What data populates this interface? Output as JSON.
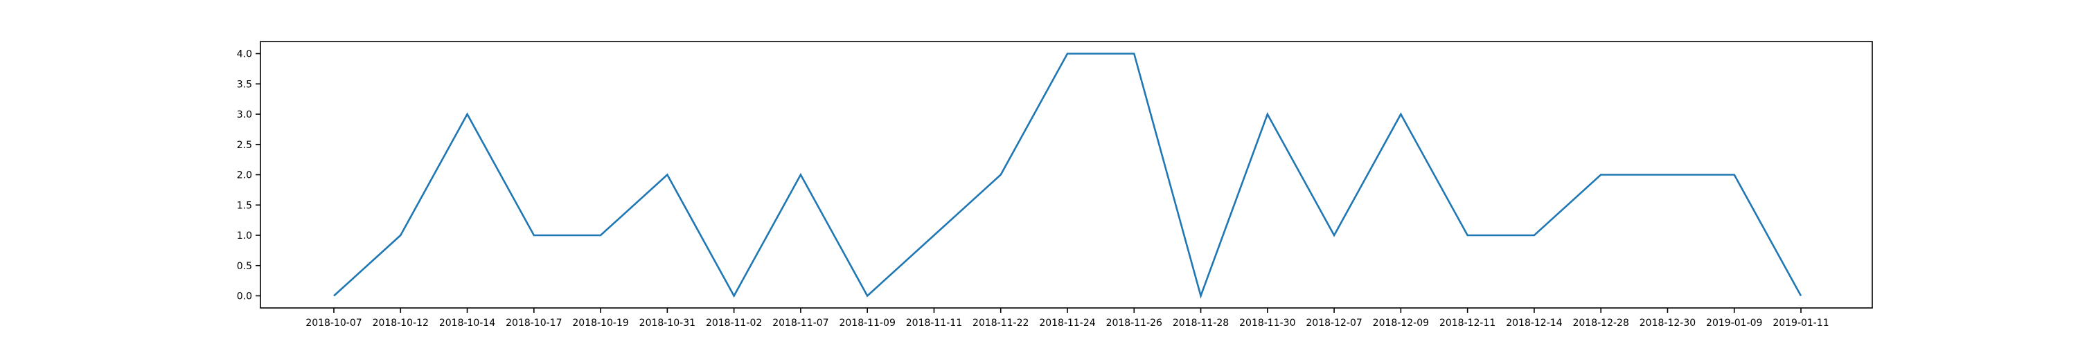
{
  "chart_data": {
    "type": "line",
    "categories": [
      "2018-10-07",
      "2018-10-12",
      "2018-10-14",
      "2018-10-17",
      "2018-10-19",
      "2018-10-31",
      "2018-11-02",
      "2018-11-07",
      "2018-11-09",
      "2018-11-11",
      "2018-11-22",
      "2018-11-24",
      "2018-11-26",
      "2018-11-28",
      "2018-11-30",
      "2018-12-07",
      "2018-12-09",
      "2018-12-11",
      "2018-12-14",
      "2018-12-28",
      "2018-12-30",
      "2019-01-09",
      "2019-01-11"
    ],
    "series": [
      {
        "values": [
          0,
          1,
          3,
          1,
          1,
          2,
          0,
          2,
          0,
          1,
          2,
          4,
          4,
          0,
          3,
          1,
          3,
          1,
          1,
          2,
          2,
          2,
          0
        ],
        "color": "#1f77b4"
      }
    ],
    "y_ticks": [
      "0.0",
      "0.5",
      "1.0",
      "1.5",
      "2.0",
      "2.5",
      "3.0",
      "3.5",
      "4.0"
    ],
    "ylim": [
      -0.2,
      4.2
    ],
    "title": "",
    "xlabel": "",
    "ylabel": "",
    "grid": false,
    "legend": "none"
  }
}
